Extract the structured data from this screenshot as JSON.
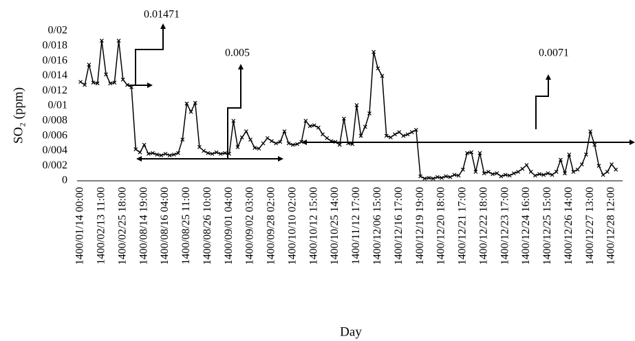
{
  "chart_data": {
    "type": "line",
    "y_label": "SO₂ (ppm)",
    "x_label": "Day",
    "annotations": [
      "0.01471",
      "0.005",
      "0.0071"
    ],
    "color": "#000000",
    "categories": [
      "1400/01/14 00:00",
      null,
      null,
      null,
      null,
      "1400/02/13 11:00",
      null,
      null,
      null,
      null,
      "1400/02/25 18:00",
      null,
      null,
      null,
      null,
      "1400/08/14 19:00",
      null,
      null,
      null,
      null,
      "1400/08/16 04:00",
      null,
      null,
      null,
      null,
      "1400/08/25 11:00",
      null,
      null,
      null,
      null,
      "1400/08/26 10:00",
      null,
      null,
      null,
      null,
      "1400/09/01 04:00",
      null,
      null,
      null,
      null,
      "1400/09/02 03:00",
      null,
      null,
      null,
      null,
      "1400/09/28 02:00",
      null,
      null,
      null,
      null,
      "1400/10/10 02:00",
      null,
      null,
      null,
      null,
      "1400/10/12 15:00",
      null,
      null,
      null,
      null,
      "1400/10/25 14:00",
      null,
      null,
      null,
      null,
      "1400/11/12 17:00",
      null,
      null,
      null,
      null,
      "1400/12/06 15:00",
      null,
      null,
      null,
      null,
      "1400/12/16 17:00",
      null,
      null,
      null,
      null,
      "1400/12/19 19:00",
      null,
      null,
      null,
      null,
      "1400/12/20 18:00",
      null,
      null,
      null,
      null,
      "1400/12/21 17:00",
      null,
      null,
      null,
      null,
      "1400/12/22 18:00",
      null,
      null,
      null,
      null,
      "1400/12/23 17:00",
      null,
      null,
      null,
      null,
      "1400/12/24 16:00",
      null,
      null,
      null,
      null,
      "1400/12/25 15:00",
      null,
      null,
      null,
      null,
      "1400/12/26 14:00",
      null,
      null,
      null,
      null,
      "1400/12/27 13:00",
      null,
      null,
      null,
      null,
      "1400/12/28 12:00",
      null
    ],
    "values": [
      0.0132,
      0.0128,
      0.0155,
      0.0131,
      0.013,
      0.0187,
      0.0142,
      0.013,
      0.0131,
      0.0187,
      0.0135,
      0.0128,
      0.0125,
      0.0042,
      0.0038,
      0.0048,
      0.0036,
      0.0037,
      0.0035,
      0.0034,
      0.0036,
      0.0034,
      0.0035,
      0.0037,
      0.0055,
      0.0103,
      0.0092,
      0.0104,
      0.0045,
      0.004,
      0.0037,
      0.0036,
      0.0038,
      0.0036,
      0.0037,
      0.0036,
      0.008,
      0.0045,
      0.0058,
      0.0066,
      0.0055,
      0.0044,
      0.0043,
      0.005,
      0.0057,
      0.0053,
      0.005,
      0.0052,
      0.0066,
      0.005,
      0.0048,
      0.0049,
      0.0052,
      0.008,
      0.0073,
      0.0074,
      0.0071,
      0.0062,
      0.0057,
      0.0053,
      0.0052,
      0.0048,
      0.0083,
      0.005,
      0.0049,
      0.0101,
      0.006,
      0.0072,
      0.009,
      0.0172,
      0.015,
      0.014,
      0.006,
      0.0058,
      0.0062,
      0.0065,
      0.006,
      0.0062,
      0.0065,
      0.0068,
      0.0006,
      0.0003,
      0.0004,
      0.0003,
      0.0005,
      0.0004,
      0.0006,
      0.0005,
      0.0008,
      0.0007,
      0.0015,
      0.0037,
      0.0038,
      0.0012,
      0.0037,
      0.001,
      0.0012,
      0.0009,
      0.001,
      0.0006,
      0.0008,
      0.0007,
      0.001,
      0.0012,
      0.0016,
      0.0021,
      0.0012,
      0.0007,
      0.0009,
      0.0008,
      0.001,
      0.0008,
      0.0012,
      0.0028,
      0.001,
      0.0035,
      0.0012,
      0.0015,
      0.0022,
      0.0035,
      0.0066,
      0.0048,
      0.002,
      0.0008,
      0.0012,
      0.0022,
      0.0015
    ],
    "ylim": [
      0,
      0.02
    ],
    "yticks": [
      0,
      {
        "value": 0.002,
        "label": "0/002"
      },
      {
        "value": 0.004,
        "label": "0/004"
      },
      {
        "value": 0.006,
        "label": "0/006"
      },
      {
        "value": 0.008,
        "label": "0/008"
      },
      {
        "value": 0.01,
        "label": "0/01"
      },
      {
        "value": 0.012,
        "label": "0/012"
      },
      {
        "value": 0.014,
        "label": "0/014"
      },
      {
        "value": 0.016,
        "label": "0/016"
      },
      {
        "value": 0.018,
        "label": "0/018"
      },
      {
        "value": 0.02,
        "label": "0/02"
      }
    ],
    "grid": false
  }
}
